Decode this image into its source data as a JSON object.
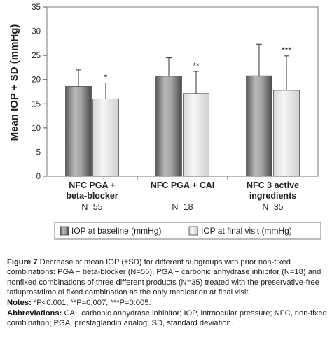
{
  "chart_data": {
    "type": "bar",
    "categories": [
      [
        "NFC PGA +",
        "beta-blocker"
      ],
      [
        "NFC PGA + CAI"
      ],
      [
        "NFC 3 active",
        "ingredients"
      ]
    ],
    "n_labels": [
      "N=55",
      "N=18",
      "N=35"
    ],
    "series": [
      {
        "name": "IOP at baseline (mmHg)",
        "values": [
          18.6,
          20.7,
          20.8
        ],
        "sd": [
          3.4,
          3.8,
          6.5
        ],
        "color": "#8c8c8c"
      },
      {
        "name": "IOP at final visit (mmHg)",
        "values": [
          16.0,
          17.1,
          17.8
        ],
        "sd": [
          3.3,
          4.6,
          7.1
        ],
        "color": "#e6e6e6"
      }
    ],
    "significance": [
      "*",
      "**",
      "***"
    ],
    "ylabel": "Mean IOP + SD (mmHg)",
    "ylim": [
      0,
      35
    ],
    "yticks": [
      0,
      5,
      10,
      15,
      20,
      25,
      30,
      35
    ],
    "grid": false,
    "legend_position": "bottom"
  },
  "caption": {
    "figure_label": "Figure 7",
    "figure_text": "Decrease of mean IOP (±SD) for different subgroups with prior non-fixed combinations: PGA + beta-blocker (N=55), PGA + carbonic anhydrase inhibitor (N=18) and nonfixed combinations of three different products (N=35) treated with the preservative-free tafluprost/timolol fixed combination as the only medication at final visit.",
    "notes_label": "Notes:",
    "notes_text": "*P<0.001, **P=0.007, ***P=0.005.",
    "abbr_label": "Abbreviations:",
    "abbr_text": "CAI, carbonic anhydrase inhibitor; IOP, intraocular pressure; NFC, non-fixed combination; PGA, prostaglandin analog; SD, standard deviation."
  }
}
